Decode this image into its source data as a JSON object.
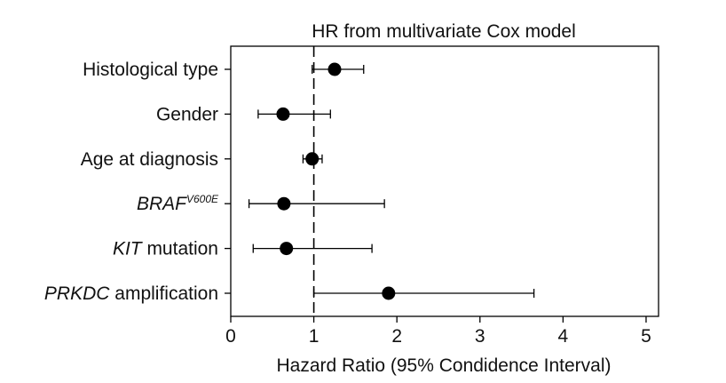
{
  "chart_data": {
    "type": "forest",
    "title": "HR from multivariate Cox model",
    "xlabel": "Hazard Ratio (95% Condidence Interval)",
    "ylabel": "",
    "xlim": [
      0,
      5.15
    ],
    "xticks": [
      "0",
      "1",
      "2",
      "3",
      "4",
      "5"
    ],
    "reference_line": 1,
    "grid": false,
    "colors": {
      "marker": "#000000",
      "line": "#000000",
      "axis": "#000000"
    },
    "rows": [
      {
        "label": "Histological type",
        "italic": "",
        "rest": "Histological type",
        "sup": "",
        "hr": 1.25,
        "lower": 0.98,
        "upper": 1.6
      },
      {
        "label": "Gender",
        "italic": "",
        "rest": "Gender",
        "sup": "",
        "hr": 0.63,
        "lower": 0.33,
        "upper": 1.2
      },
      {
        "label": "Age at diagnosis",
        "italic": "",
        "rest": "Age at diagnosis",
        "sup": "",
        "hr": 0.98,
        "lower": 0.87,
        "upper": 1.1
      },
      {
        "label": "BRAFV600E",
        "italic": "BRAF",
        "rest": "",
        "sup": "V600E",
        "hr": 0.64,
        "lower": 0.22,
        "upper": 1.85
      },
      {
        "label": "KIT mutation",
        "italic": "KIT",
        "rest": " mutation",
        "sup": "",
        "hr": 0.67,
        "lower": 0.27,
        "upper": 1.7
      },
      {
        "label": "PRKDC amplification",
        "italic": "PRKDC",
        "rest": " amplification",
        "sup": "",
        "hr": 1.9,
        "lower": 1.0,
        "upper": 3.65
      }
    ]
  }
}
